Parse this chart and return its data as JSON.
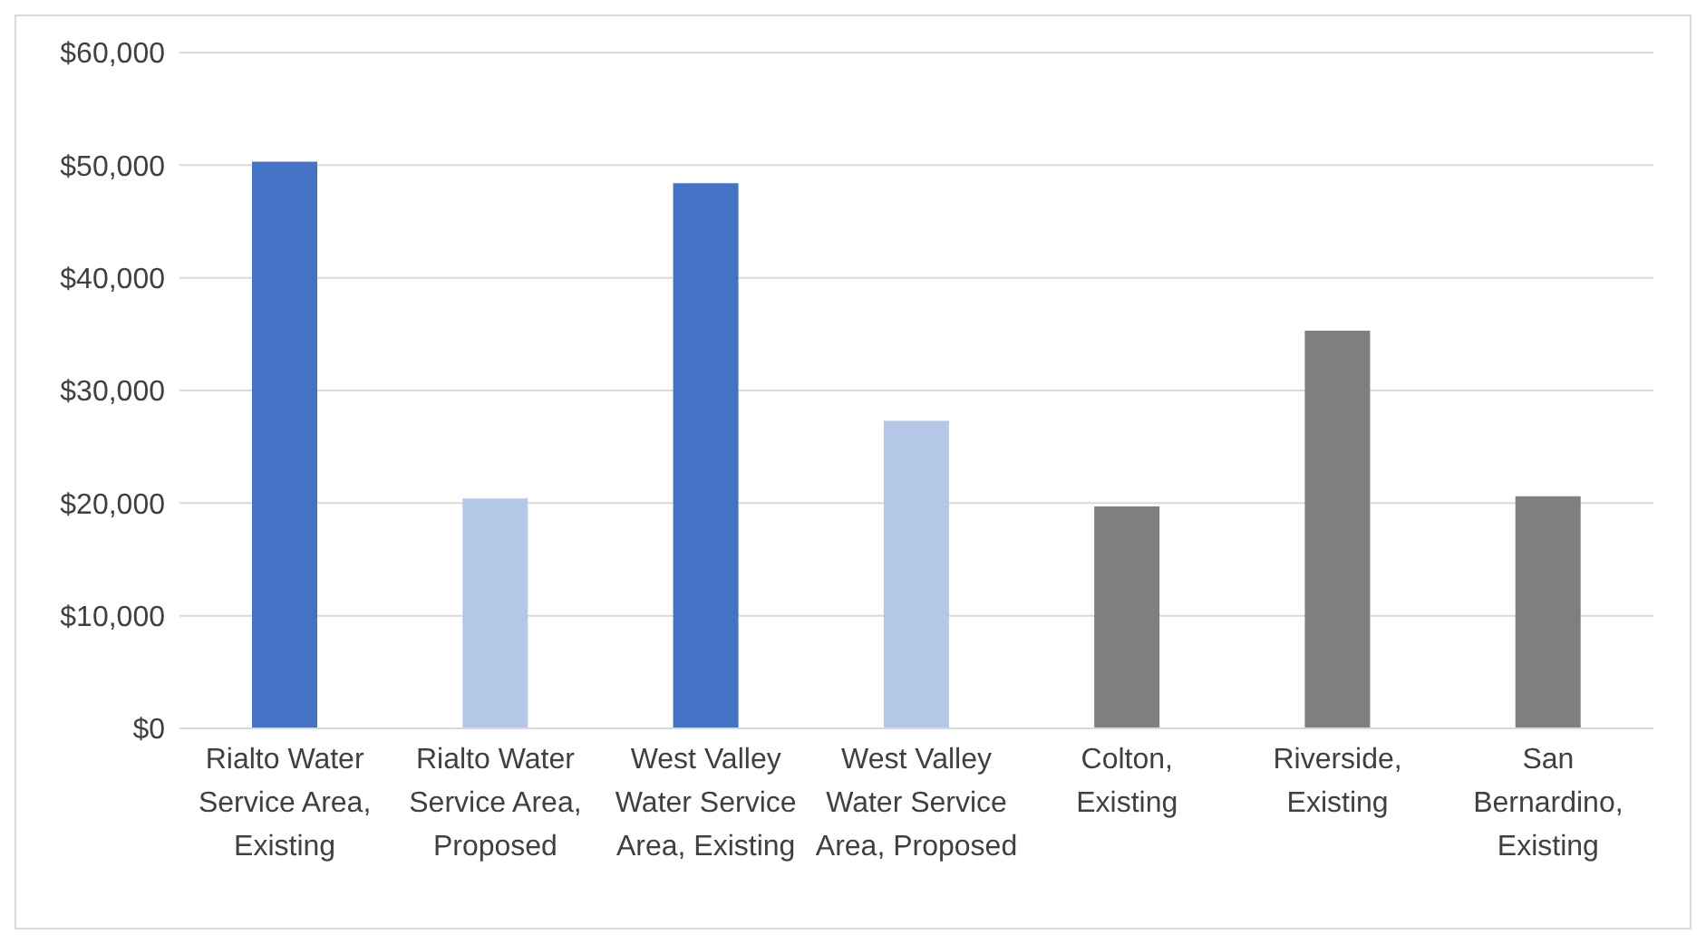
{
  "chart_data": {
    "type": "bar",
    "categories": [
      "Rialto Water Service Area, Existing",
      "Rialto Water Service Area, Proposed",
      "West Valley Water Service Area, Existing",
      "West Valley Water Service Area, Proposed",
      "Colton, Existing",
      "Riverside, Existing",
      "San Bernardino, Existing"
    ],
    "values": [
      50300,
      20400,
      48400,
      27300,
      19700,
      35300,
      20600
    ],
    "colors": [
      "#4472c4",
      "#b4c7e7",
      "#4472c4",
      "#b4c7e7",
      "#7f7f7f",
      "#7f7f7f",
      "#7f7f7f"
    ],
    "ylim": [
      0,
      60000
    ],
    "yticks": [
      {
        "value": 0,
        "label": "$0"
      },
      {
        "value": 10000,
        "label": "$10,000"
      },
      {
        "value": 20000,
        "label": "$20,000"
      },
      {
        "value": 30000,
        "label": "$30,000"
      },
      {
        "value": 40000,
        "label": "$40,000"
      },
      {
        "value": 50000,
        "label": "$50,000"
      },
      {
        "value": 60000,
        "label": "$60,000"
      }
    ],
    "grid": "y"
  }
}
